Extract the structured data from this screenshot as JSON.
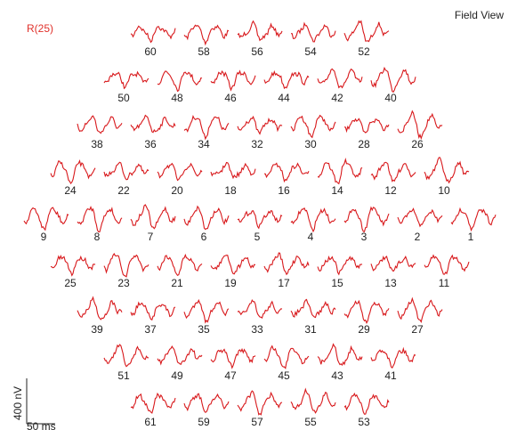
{
  "header": {
    "eye": "R(25)",
    "view": "Field View"
  },
  "scale": {
    "amplitude": "400 nV",
    "time": "50 ms"
  },
  "rows": [
    [
      "60",
      "58",
      "56",
      "54",
      "52"
    ],
    [
      "50",
      "48",
      "46",
      "44",
      "42",
      "40"
    ],
    [
      "38",
      "36",
      "34",
      "32",
      "30",
      "28",
      "26"
    ],
    [
      "24",
      "22",
      "20",
      "18",
      "16",
      "14",
      "12",
      "10"
    ],
    [
      "9",
      "8",
      "7",
      "6",
      "5",
      "4",
      "3",
      "2",
      "1"
    ],
    [
      "25",
      "23",
      "21",
      "19",
      "17",
      "15",
      "13",
      "11"
    ],
    [
      "39",
      "37",
      "35",
      "33",
      "31",
      "29",
      "27"
    ],
    [
      "51",
      "49",
      "47",
      "45",
      "43",
      "41"
    ],
    [
      "61",
      "59",
      "57",
      "55",
      "53"
    ]
  ]
}
